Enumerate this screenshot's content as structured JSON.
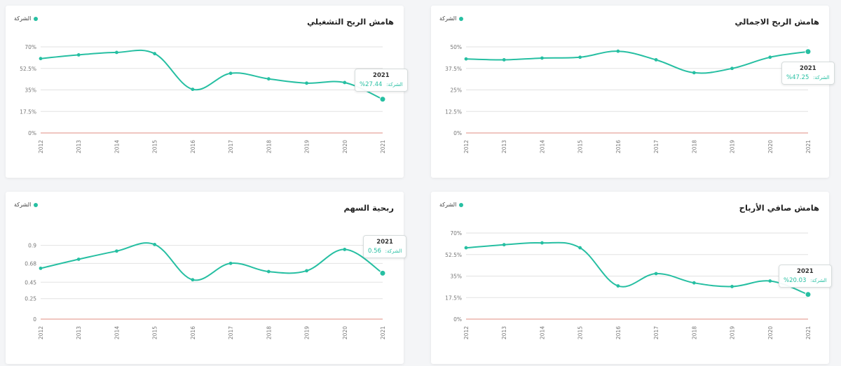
{
  "chart_data": [
    {
      "id": "op",
      "type": "line",
      "title": "هامش الربح التشغيلي",
      "legend": "الشركة",
      "categories": [
        "2012",
        "2013",
        "2014",
        "2015",
        "2016",
        "2017",
        "2018",
        "2019",
        "2020",
        "2021"
      ],
      "series": [
        {
          "name": "الشركة",
          "values": [
            60.5,
            63.5,
            65.5,
            64.5,
            35.5,
            48.5,
            44,
            40.5,
            41,
            27.44
          ]
        }
      ],
      "ylim": [
        0,
        70
      ],
      "yticks": [
        0,
        17.5,
        35,
        52.5,
        70
      ],
      "ytick_labels": [
        "0%",
        "17.5%",
        "35%",
        "52.5%",
        "70%"
      ],
      "zero_line": true,
      "tooltip": {
        "title": "2021",
        "label": "الشركة:",
        "value": "27.44%"
      }
    },
    {
      "id": "gr",
      "type": "line",
      "title": "هامش الربح الاجمالي",
      "legend": "الشركة",
      "categories": [
        "2012",
        "2013",
        "2014",
        "2015",
        "2016",
        "2017",
        "2018",
        "2019",
        "2020",
        "2021"
      ],
      "series": [
        {
          "name": "الشركة",
          "values": [
            43,
            42.5,
            43.5,
            44,
            47.5,
            42.5,
            35,
            37.5,
            44,
            47.25
          ]
        }
      ],
      "ylim": [
        0,
        50
      ],
      "yticks": [
        0,
        12.5,
        25,
        37.5,
        50
      ],
      "ytick_labels": [
        "0%",
        "12.5%",
        "25%",
        "37.5%",
        "50%"
      ],
      "zero_line": true,
      "tooltip": {
        "title": "2021",
        "label": "الشركة:",
        "value": "47.25%"
      }
    },
    {
      "id": "eps",
      "type": "line",
      "title": "ربحية السهم",
      "legend": "الشركة",
      "categories": [
        "2012",
        "2013",
        "2014",
        "2015",
        "2016",
        "2017",
        "2018",
        "2019",
        "2020",
        "2021"
      ],
      "series": [
        {
          "name": "الشركة",
          "values": [
            0.62,
            0.73,
            0.83,
            0.91,
            0.48,
            0.68,
            0.58,
            0.59,
            0.85,
            0.56
          ]
        }
      ],
      "ylim": [
        0,
        1.05
      ],
      "yticks": [
        0,
        0.25,
        0.45,
        0.68,
        0.9
      ],
      "ytick_labels": [
        "0",
        "0.25",
        "0.45",
        "0.68",
        "0.9"
      ],
      "zero_line": true,
      "tooltip": {
        "title": "2021",
        "label": "الشركة:",
        "value": "0.56"
      }
    },
    {
      "id": "net",
      "type": "line",
      "title": "هامش صافي الأرباح",
      "legend": "الشركة",
      "categories": [
        "2012",
        "2013",
        "2014",
        "2015",
        "2016",
        "2017",
        "2018",
        "2019",
        "2020",
        "2021"
      ],
      "series": [
        {
          "name": "الشركة",
          "values": [
            58,
            60.5,
            62,
            58,
            27,
            37,
            29.5,
            26.5,
            31,
            20.03
          ]
        }
      ],
      "ylim": [
        0,
        70
      ],
      "yticks": [
        0,
        17.5,
        35,
        52.5,
        70
      ],
      "ytick_labels": [
        "0%",
        "17.5%",
        "35%",
        "52.5%",
        "70%"
      ],
      "zero_line": true,
      "tooltip": {
        "title": "2021",
        "label": "الشركة:",
        "value": "20.03%"
      }
    }
  ],
  "colors": {
    "line": "#26bfa2",
    "grid": "#e2e2e2",
    "zero": "#e6a59b",
    "axis_text": "#777777"
  }
}
